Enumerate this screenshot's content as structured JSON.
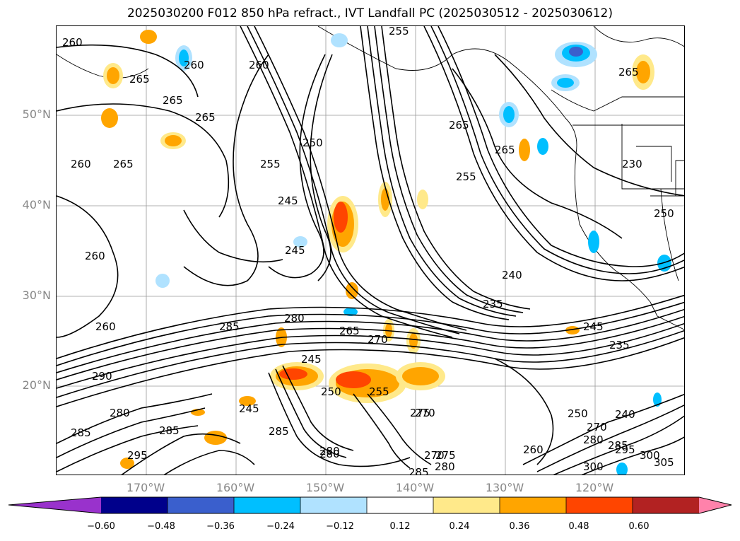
{
  "title": "2025030200 F012 850 hPa refract., IVT Landfall PC (2025030512 - 2025030612)",
  "lat_labels": [
    "50°N",
    "40°N",
    "30°N",
    "20°N"
  ],
  "lon_labels": [
    "170°W",
    "160°W",
    "150°W",
    "140°W",
    "130°W",
    "120°W"
  ],
  "contour_labels": [
    "260",
    "265",
    "260",
    "265",
    "260",
    "265",
    "265",
    "255",
    "250",
    "245",
    "245",
    "260",
    "260",
    "285",
    "280",
    "265",
    "270",
    "245",
    "250",
    "245",
    "255",
    "270",
    "285",
    "285",
    "280",
    "265",
    "255",
    "240",
    "235",
    "245",
    "235",
    "260",
    "250",
    "270",
    "280",
    "285",
    "295",
    "300",
    "300",
    "305",
    "240",
    "275",
    "280",
    "285",
    "275",
    "280",
    "295",
    "290",
    "285",
    "280",
    "230",
    "250",
    "270",
    "265",
    "265",
    "255",
    "260"
  ],
  "colorbar": {
    "ticks": [
      "−0.60",
      "−0.48",
      "−0.36",
      "−0.24",
      "−0.12",
      "0.12",
      "0.24",
      "0.36",
      "0.48",
      "0.60"
    ],
    "colors": [
      "#9932cc",
      "#00008b",
      "#3a5fcd",
      "#00bfff",
      "#b0e2ff",
      "#ffffff",
      "#ffe98a",
      "#ffa500",
      "#ff4500",
      "#b22222",
      "#ff82ab"
    ]
  },
  "map": {
    "gridlines": true,
    "lat_range": [
      "10°N",
      "60°N"
    ],
    "lon_range": [
      "180°",
      "110°W"
    ]
  }
}
